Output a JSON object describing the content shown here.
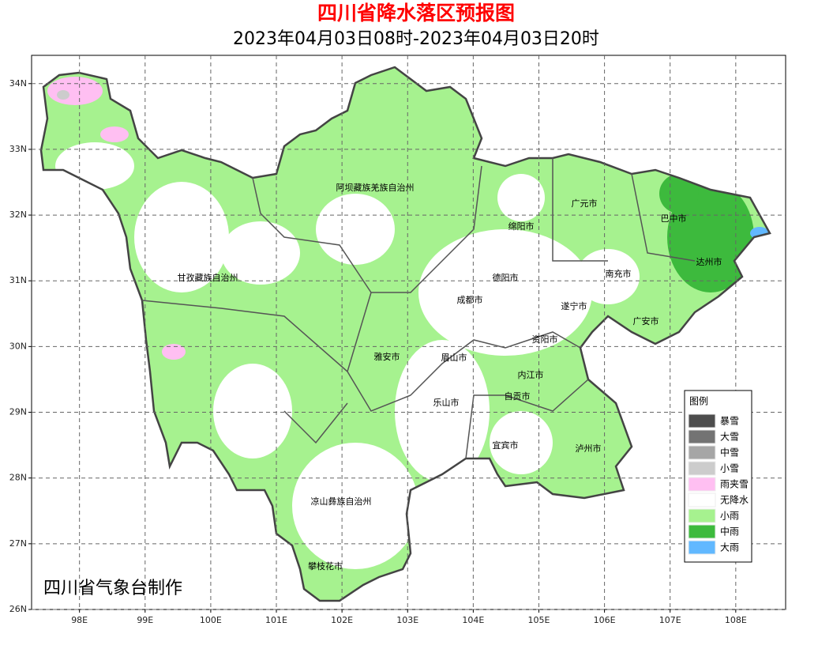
{
  "map": {
    "title": "四川省降水落区预报图",
    "subtitle": "2023年04月03日08时-2023年04月03日20时",
    "xlim": [
      97.27,
      108.76
    ],
    "ylim": [
      26,
      34.43
    ],
    "xticks": [
      {
        "value": 98,
        "label": "98E"
      },
      {
        "value": 99,
        "label": "99E"
      },
      {
        "value": 100,
        "label": "100E"
      },
      {
        "value": 101,
        "label": "101E"
      },
      {
        "value": 102,
        "label": "102E"
      },
      {
        "value": 103,
        "label": "103E"
      },
      {
        "value": 104,
        "label": "104E"
      },
      {
        "value": 105,
        "label": "105E"
      },
      {
        "value": 106,
        "label": "106E"
      },
      {
        "value": 107,
        "label": "107E"
      },
      {
        "value": 108,
        "label": "108E"
      }
    ],
    "yticks": [
      {
        "value": 26,
        "label": "26N"
      },
      {
        "value": 27,
        "label": "27N"
      },
      {
        "value": 28,
        "label": "28N"
      },
      {
        "value": 29,
        "label": "29N"
      },
      {
        "value": 30,
        "label": "30N"
      },
      {
        "value": 31,
        "label": "31N"
      },
      {
        "value": 32,
        "label": "32N"
      },
      {
        "value": 33,
        "label": "33N"
      },
      {
        "value": 34,
        "label": "34N"
      }
    ],
    "grid": true,
    "regions": [
      "阿坝藏族羌族自治州",
      "甘孜藏族自治州",
      "广元市",
      "巴中市",
      "绵阳市",
      "达州市",
      "德阳市",
      "南充市",
      "成都市",
      "遂宁市",
      "广安市",
      "资阳市",
      "雅安市",
      "眉山市",
      "内江市",
      "自贡市",
      "乐山市",
      "宜宾市",
      "泸州市",
      "凉山彝族自治州",
      "攀枝花市"
    ],
    "legend": {
      "title": "图例",
      "items": [
        {
          "name": "暴雪",
          "color": "#4d4d4d"
        },
        {
          "name": "大雪",
          "color": "#737373"
        },
        {
          "name": "中雪",
          "color": "#a6a6a6"
        },
        {
          "name": "小雪",
          "color": "#cccccc"
        },
        {
          "name": "雨夹雪",
          "color": "#ffbff2"
        },
        {
          "name": "无降水",
          "color": "#ffffff"
        },
        {
          "name": "小雨",
          "color": "#a6f28f"
        },
        {
          "name": "中雨",
          "color": "#3dba3d"
        },
        {
          "name": "大雨",
          "color": "#61b8ff"
        }
      ]
    },
    "credit": "四川省气象台制作"
  }
}
